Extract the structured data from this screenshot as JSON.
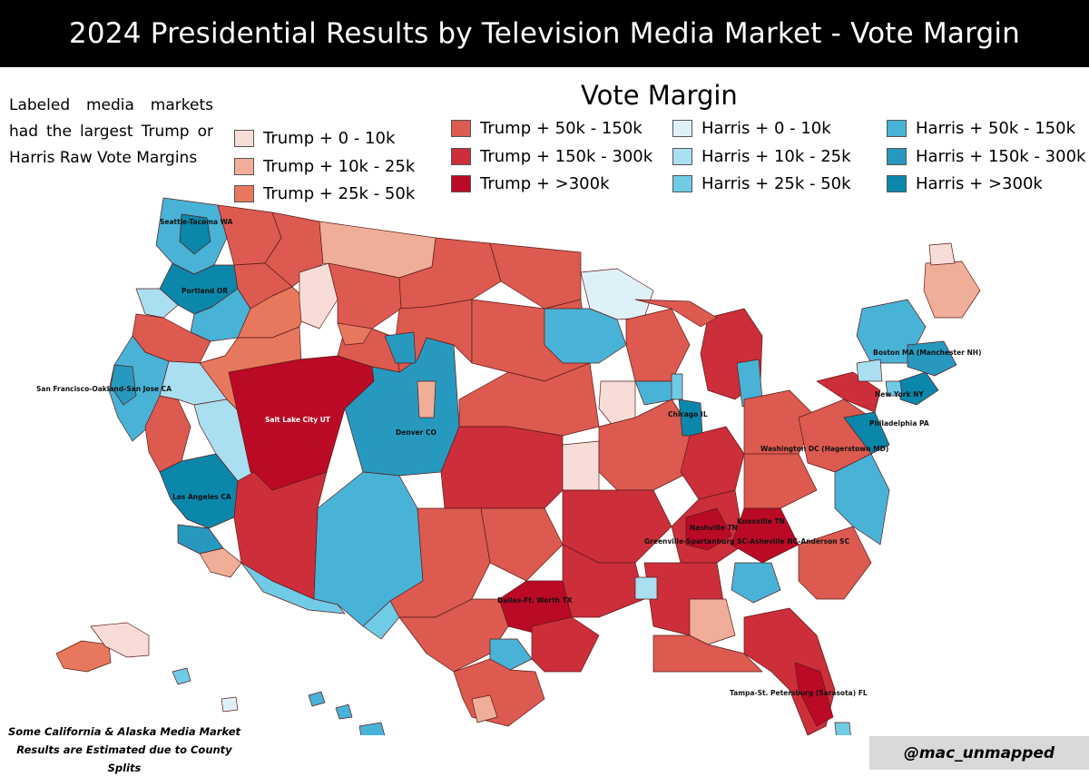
{
  "header": {
    "title": "2024 Presidential Results by Television Media Market - Vote Margin"
  },
  "note": "Labeled media markets had the largest Trump or Harris Raw Vote Margins",
  "legend": {
    "title": "Vote Margin",
    "items": [
      {
        "label": "Trump + 0 - 10k",
        "color": "#f8dcd8"
      },
      {
        "label": "Trump + 10k - 25k",
        "color": "#f0ae98"
      },
      {
        "label": "Trump + 25k - 50k",
        "color": "#e8785d"
      },
      {
        "label": "Trump + 50k - 150k",
        "color": "#dc5a50"
      },
      {
        "label": "Trump + 150k - 300k",
        "color": "#cc2e3a"
      },
      {
        "label": "Trump + >300k",
        "color": "#bb0a25"
      },
      {
        "label": "Harris + 0 - 10k",
        "color": "#dff1f8"
      },
      {
        "label": "Harris + 10k - 25k",
        "color": "#a9dff0"
      },
      {
        "label": "Harris + 25k - 50k",
        "color": "#6fcbe6"
      },
      {
        "label": "Harris + 50k - 150k",
        "color": "#48b3d6"
      },
      {
        "label": "Harris + 150k - 300k",
        "color": "#2799bf"
      },
      {
        "label": "Harris + >300k",
        "color": "#0a87ab"
      }
    ]
  },
  "market_labels": [
    "Seattle-Tacoma WA",
    "Portland OR",
    "San Francisco-Oakland-San Jose CA",
    "Los Angeles CA",
    "Salt Lake City UT",
    "Denver CO",
    "Dallas-Ft. Worth TX",
    "Nashville TN",
    "Knoxville TN",
    "Greenville-Spartanburg SC-Asheville NC-Anderson SC",
    "Tampa-St. Petersburg (Sarasota) FL",
    "Chicago IL",
    "Washington DC (Hagerstown MD)",
    "Philadelphia PA",
    "New York NY",
    "Boston MA (Manchester NH)"
  ],
  "footnote": "Some California & Alaska Media Market Results are Estimated due to County Splits",
  "credit": "@mac_unmapped"
}
